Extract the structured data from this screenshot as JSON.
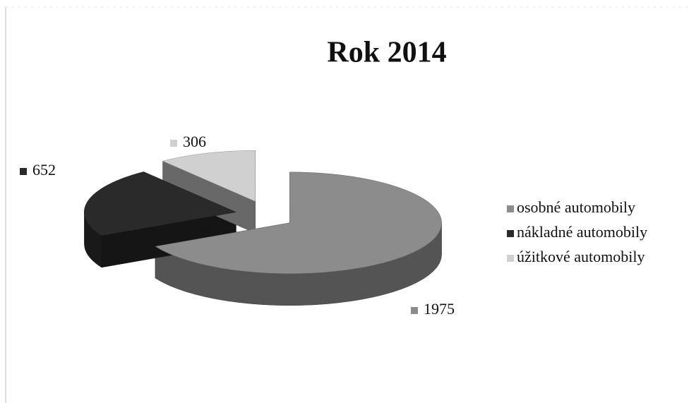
{
  "chart_data": {
    "type": "pie",
    "title": "Rok 2014",
    "categories": [
      "osobné automobily",
      "nákladné automobily",
      "úžitkové automobily"
    ],
    "values": [
      1975,
      652,
      306
    ],
    "colors": [
      "#8c8c8c",
      "#2a2a2a",
      "#d0d0d0"
    ],
    "legend": "right"
  }
}
